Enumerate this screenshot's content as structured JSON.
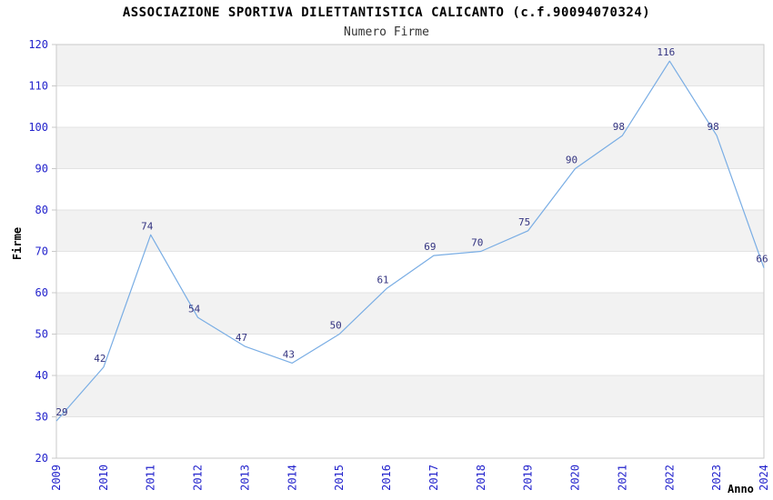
{
  "title": "ASSOCIAZIONE SPORTIVA DILETTANTISTICA CALICANTO (c.f.90094070324)",
  "chart_data": {
    "type": "line",
    "title": "Numero Firme",
    "x": [
      2009,
      2010,
      2011,
      2012,
      2013,
      2014,
      2015,
      2016,
      2017,
      2018,
      2019,
      2020,
      2021,
      2022,
      2023,
      2024
    ],
    "values": [
      29,
      42,
      74,
      54,
      47,
      43,
      50,
      61,
      69,
      70,
      75,
      90,
      98,
      116,
      98,
      66
    ],
    "xlabel": "Anno",
    "ylabel": "Firme",
    "ylim": [
      20,
      120
    ],
    "ytick_step": 10,
    "grid": "alternating-horizontal-bands",
    "legend_position": "none",
    "colors": {
      "line": "#79ade4",
      "data_label": "#333380",
      "tick_label": "#2222cc",
      "band_gray": "#f2f2f2",
      "gridline": "#e3e3e3",
      "plot_border": "#c9c9c9",
      "tick_mark": "#c9c9c9",
      "title": "#000000",
      "subtitle": "#333333",
      "axis_title": "#000000"
    }
  }
}
